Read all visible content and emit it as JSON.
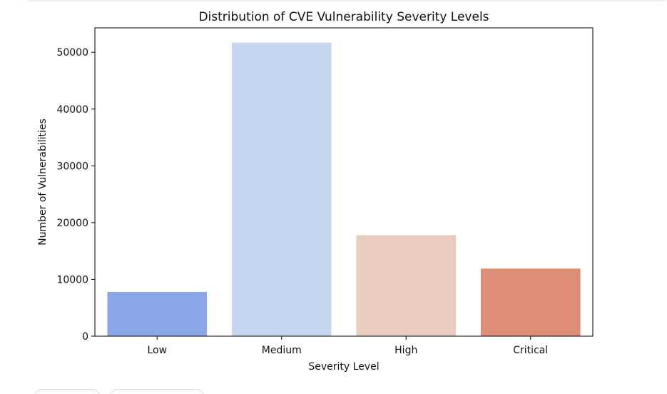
{
  "chart_data": {
    "type": "bar",
    "title": "Distribution of CVE Vulnerability Severity Levels",
    "xlabel": "Severity Level",
    "ylabel": "Number of Vulnerabilities",
    "categories": [
      "Low",
      "Medium",
      "High",
      "Critical"
    ],
    "values": [
      7800,
      51700,
      17800,
      11900
    ],
    "colors": [
      "#8aa7ea",
      "#c6d5f0",
      "#eacdc0",
      "#de8d77"
    ],
    "ylim": [
      0,
      54300
    ],
    "yticks": [
      0,
      10000,
      20000,
      30000,
      40000,
      50000
    ],
    "grid": false,
    "legend": "none"
  }
}
